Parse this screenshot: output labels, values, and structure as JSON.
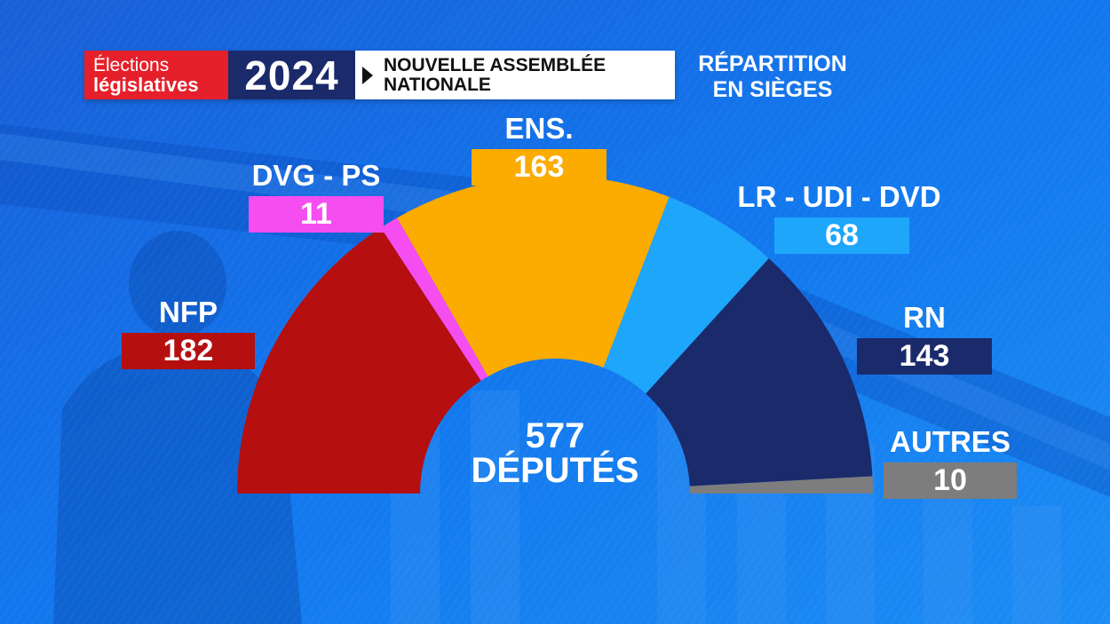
{
  "header": {
    "badge_line1": "Élections",
    "badge_line2": "législatives",
    "year": "2024",
    "subtitle_line1": "NOUVELLE ASSEMBLÉE",
    "subtitle_line2": "NATIONALE",
    "section_line1": "RÉPARTITION",
    "section_line2": "EN SIÈGES"
  },
  "center": {
    "total": "577",
    "caption": "DÉPUTÉS"
  },
  "chart_data": {
    "type": "pie",
    "variant": "half-donut",
    "total": 577,
    "categories": [
      "NFP",
      "DVG - PS",
      "ENS.",
      "LR - UDI - DVD",
      "RN",
      "AUTRES"
    ],
    "values": [
      182,
      11,
      163,
      68,
      143,
      10
    ],
    "colors": [
      "#b50f10",
      "#f54df0",
      "#fcab00",
      "#1ea6fb",
      "#1b2a6b",
      "#7d7d7d"
    ],
    "labels": [
      {
        "name": "NFP",
        "value": "182"
      },
      {
        "name": "DVG - PS",
        "value": "11"
      },
      {
        "name": "ENS.",
        "value": "163"
      },
      {
        "name": "LR - UDI - DVD",
        "value": "68"
      },
      {
        "name": "RN",
        "value": "143"
      },
      {
        "name": "AUTRES",
        "value": "10"
      }
    ]
  }
}
